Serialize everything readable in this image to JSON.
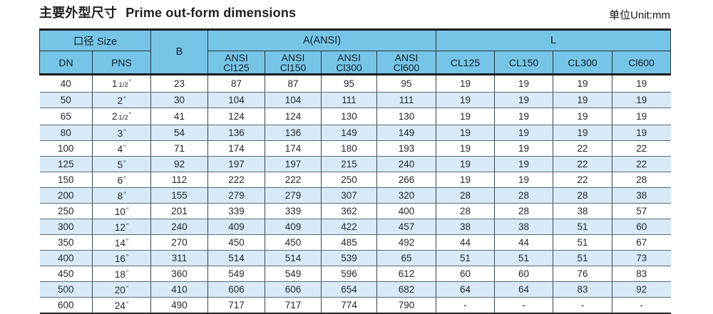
{
  "page": {
    "title_zh": "主要外型尺寸",
    "title_en": "Prime out-form dimensions",
    "unit_label": "单位Unit:mm"
  },
  "table": {
    "header": {
      "size_group": "口径 Size",
      "dn": "DN",
      "pns": "PNS",
      "b": "B",
      "a_group": "A(ANSI)",
      "a_cols": [
        {
          "l1": "ANSI",
          "l2": "Cl125"
        },
        {
          "l1": "ANSI",
          "l2": "Cl150"
        },
        {
          "l1": "ANSI",
          "l2": "Cl300"
        },
        {
          "l1": "ANSI",
          "l2": "Cl600"
        }
      ],
      "l_group": "L",
      "l_cols": [
        "CL125",
        "CL150",
        "CL300",
        "Cl600"
      ]
    },
    "rows": [
      {
        "dn": "40",
        "pns": "1 1/2″",
        "b": "23",
        "a": [
          "87",
          "87",
          "95",
          "95"
        ],
        "l": [
          "19",
          "19",
          "19",
          "19"
        ]
      },
      {
        "dn": "50",
        "pns": "2″",
        "b": "30",
        "a": [
          "104",
          "104",
          "111",
          "111"
        ],
        "l": [
          "19",
          "19",
          "19",
          "19"
        ]
      },
      {
        "dn": "65",
        "pns": "2 1/2″",
        "b": "41",
        "a": [
          "124",
          "124",
          "130",
          "130"
        ],
        "l": [
          "19",
          "19",
          "19",
          "19"
        ]
      },
      {
        "dn": "80",
        "pns": "3″",
        "b": "54",
        "a": [
          "136",
          "136",
          "149",
          "149"
        ],
        "l": [
          "19",
          "19",
          "19",
          "19"
        ]
      },
      {
        "dn": "100",
        "pns": "4″",
        "b": "71",
        "a": [
          "174",
          "174",
          "180",
          "193"
        ],
        "l": [
          "19",
          "19",
          "22",
          "22"
        ]
      },
      {
        "dn": "125",
        "pns": "5″",
        "b": "92",
        "a": [
          "197",
          "197",
          "215",
          "240"
        ],
        "l": [
          "19",
          "19",
          "22",
          "22"
        ]
      },
      {
        "dn": "150",
        "pns": "6″",
        "b": "112",
        "a": [
          "222",
          "222",
          "250",
          "266"
        ],
        "l": [
          "19",
          "19",
          "22",
          "28"
        ]
      },
      {
        "dn": "200",
        "pns": "8″",
        "b": "155",
        "a": [
          "279",
          "279",
          "307",
          "320"
        ],
        "l": [
          "28",
          "28",
          "28",
          "38"
        ]
      },
      {
        "dn": "250",
        "pns": "10″",
        "b": "201",
        "a": [
          "339",
          "339",
          "362",
          "400"
        ],
        "l": [
          "28",
          "28",
          "38",
          "57"
        ]
      },
      {
        "dn": "300",
        "pns": "12″",
        "b": "240",
        "a": [
          "409",
          "409",
          "422",
          "457"
        ],
        "l": [
          "38",
          "38",
          "51",
          "60"
        ]
      },
      {
        "dn": "350",
        "pns": "14″",
        "b": "270",
        "a": [
          "450",
          "450",
          "485",
          "492"
        ],
        "l": [
          "44",
          "44",
          "51",
          "67"
        ]
      },
      {
        "dn": "400",
        "pns": "16″",
        "b": "311",
        "a": [
          "514",
          "514",
          "539",
          "65"
        ],
        "l": [
          "51",
          "51",
          "51",
          "73"
        ]
      },
      {
        "dn": "450",
        "pns": "18″",
        "b": "360",
        "a": [
          "549",
          "549",
          "596",
          "612"
        ],
        "l": [
          "60",
          "60",
          "76",
          "83"
        ]
      },
      {
        "dn": "500",
        "pns": "20″",
        "b": "410",
        "a": [
          "606",
          "606",
          "654",
          "682"
        ],
        "l": [
          "64",
          "64",
          "83",
          "92"
        ]
      },
      {
        "dn": "600",
        "pns": "24″",
        "b": "490",
        "a": [
          "717",
          "717",
          "774",
          "790"
        ],
        "l": [
          "-",
          "-",
          "-",
          "-"
        ]
      }
    ]
  },
  "colors": {
    "header_bg": "#76c5e7",
    "stripe_bg": "#d8eaf7",
    "thick_border": "#1a1a1a"
  }
}
